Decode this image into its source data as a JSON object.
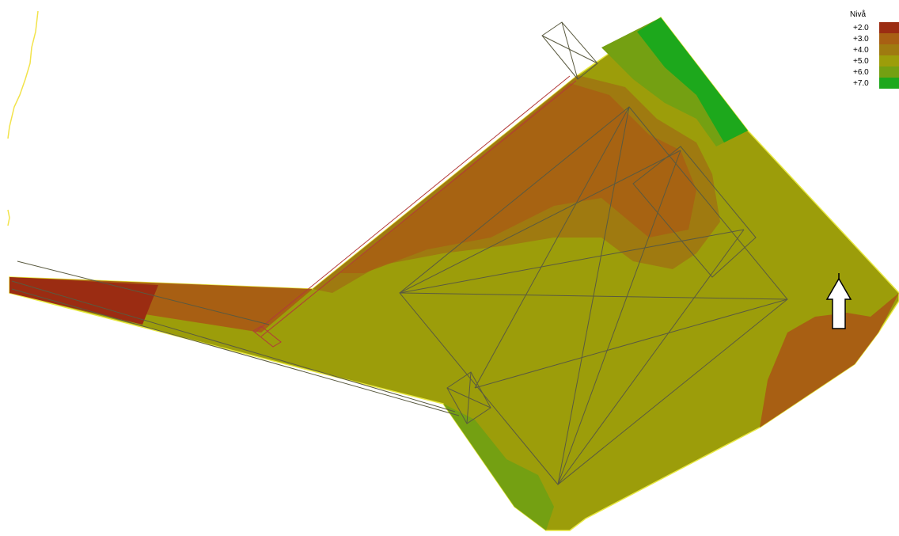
{
  "legend": {
    "title": "Nivå",
    "items": [
      {
        "label": "+2.0",
        "color": "#9b2c12"
      },
      {
        "label": "+3.0",
        "color": "#a85f13"
      },
      {
        "label": "+4.0",
        "color": "#9f7a10"
      },
      {
        "label": "+5.0",
        "color": "#9c9d0a"
      },
      {
        "label": "+6.0",
        "color": "#74a012"
      },
      {
        "label": "+7.0",
        "color": "#1da81c"
      }
    ]
  },
  "north_arrow": {
    "icon": "north-arrow-icon"
  }
}
